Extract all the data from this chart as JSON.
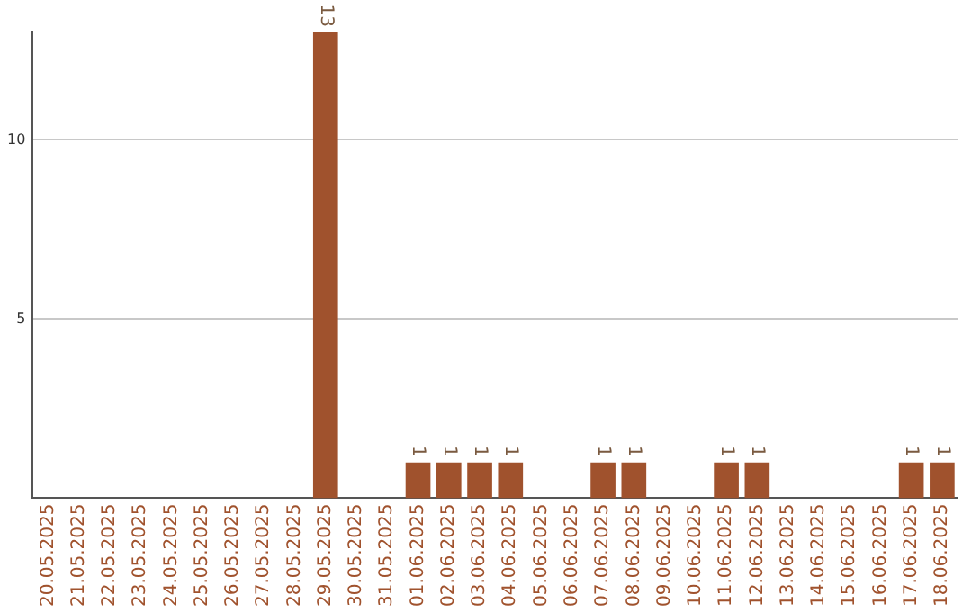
{
  "chart_data": {
    "type": "bar",
    "categories": [
      "20.05.2025",
      "21.05.2025",
      "22.05.2025",
      "23.05.2025",
      "24.05.2025",
      "25.05.2025",
      "26.05.2025",
      "27.05.2025",
      "28.05.2025",
      "29.05.2025",
      "30.05.2025",
      "31.05.2025",
      "01.06.2025",
      "02.06.2025",
      "03.06.2025",
      "04.06.2025",
      "05.06.2025",
      "06.06.2025",
      "07.06.2025",
      "08.06.2025",
      "09.06.2025",
      "10.06.2025",
      "11.06.2025",
      "12.06.2025",
      "13.06.2025",
      "14.06.2025",
      "15.06.2025",
      "16.06.2025",
      "17.06.2025",
      "18.06.2025"
    ],
    "values": [
      0,
      0,
      0,
      0,
      0,
      0,
      0,
      0,
      0,
      13,
      0,
      0,
      1,
      1,
      1,
      1,
      0,
      0,
      1,
      1,
      0,
      0,
      1,
      1,
      0,
      0,
      0,
      0,
      1,
      1
    ],
    "value_labels": [
      null,
      null,
      null,
      null,
      null,
      null,
      null,
      null,
      null,
      "13",
      null,
      null,
      "1",
      "1",
      "1",
      "1",
      null,
      null,
      "1",
      "1",
      null,
      null,
      "1",
      "1",
      null,
      null,
      null,
      null,
      "1",
      "1"
    ],
    "color": "#a0522d",
    "ylim": [
      0,
      13
    ],
    "yticks": [
      5,
      10
    ],
    "grid": "y"
  }
}
